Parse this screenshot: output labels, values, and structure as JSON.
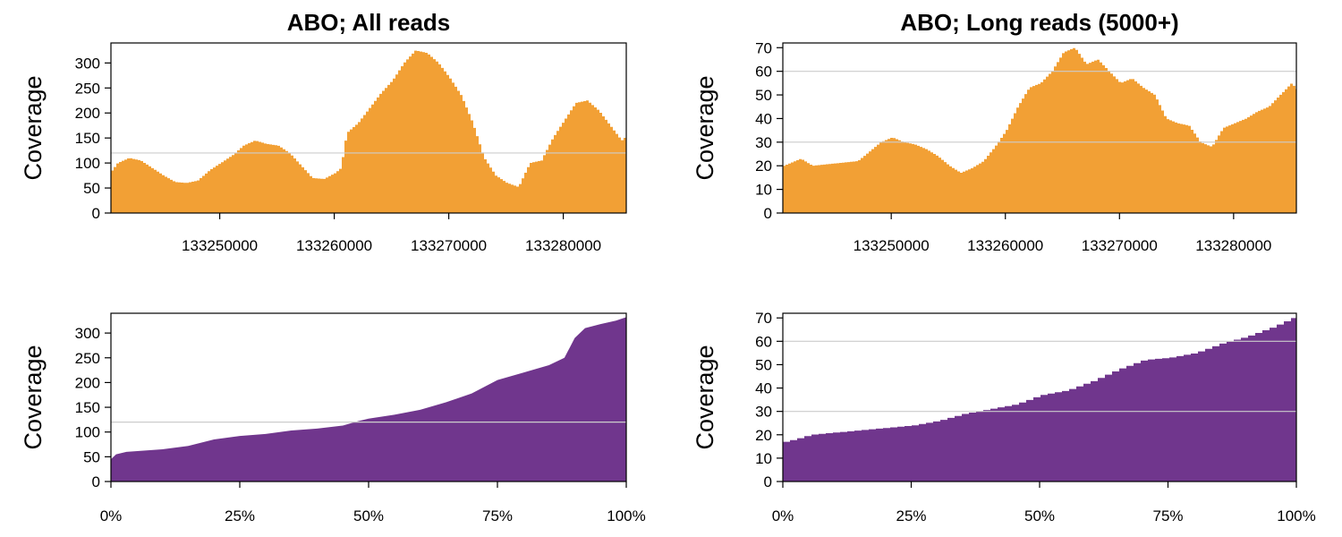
{
  "colors": {
    "coverage_fill": "#F2A035",
    "sorted_fill": "#70368D",
    "reference_line": "#CCCCCC"
  },
  "chart_data": [
    {
      "type": "area",
      "title": "ABO; All reads",
      "ylabel": "Coverage",
      "xlim": [
        133240500,
        133285500
      ],
      "ylim": [
        0,
        340
      ],
      "xticks": [
        133250000,
        133260000,
        133270000,
        133280000
      ],
      "xtick_labels": [
        "133250000",
        "133260000",
        "133270000",
        "133280000"
      ],
      "yticks": [
        0,
        50,
        100,
        150,
        200,
        250,
        300
      ],
      "reference_lines": [
        120
      ],
      "series": [
        {
          "x": [
            133240500,
            133241000,
            133242000,
            133243000,
            133244000,
            133245000,
            133246000,
            133247000,
            133248000,
            133249000,
            133250000,
            133251000,
            133252000,
            133253000,
            133254000,
            133255000,
            133256000,
            133257000,
            133258000,
            133259000,
            133260000,
            133260500,
            133261000,
            133262000,
            133263000,
            133264000,
            133265000,
            133266000,
            133267000,
            133268000,
            133269000,
            133270000,
            133271000,
            133272000,
            133273000,
            133274000,
            133275000,
            133276000,
            133277000,
            133278000,
            133279000,
            133280000,
            133281000,
            133282000,
            133283000,
            133284000,
            133285000,
            133285500
          ],
          "y": [
            85,
            100,
            110,
            105,
            90,
            75,
            62,
            60,
            65,
            85,
            100,
            115,
            135,
            145,
            138,
            135,
            120,
            95,
            70,
            68,
            80,
            90,
            160,
            180,
            210,
            240,
            265,
            300,
            325,
            320,
            300,
            270,
            235,
            180,
            110,
            75,
            60,
            52,
            100,
            105,
            150,
            185,
            220,
            225,
            205,
            175,
            145,
            155
          ]
        }
      ]
    },
    {
      "type": "area",
      "title": "ABO; Long reads (5000+)",
      "ylabel": "Coverage",
      "xlim": [
        133240500,
        133285500
      ],
      "ylim": [
        0,
        72
      ],
      "xticks": [
        133250000,
        133260000,
        133270000,
        133280000
      ],
      "xtick_labels": [
        "133250000",
        "133260000",
        "133270000",
        "133280000"
      ],
      "yticks": [
        0,
        10,
        20,
        30,
        40,
        50,
        60,
        70
      ],
      "reference_lines": [
        30,
        60
      ],
      "series": [
        {
          "x": [
            133240500,
            133242000,
            133243000,
            133245000,
            133247000,
            133248000,
            133249000,
            133250000,
            133251000,
            133252000,
            133253000,
            133254000,
            133255000,
            133256000,
            133257000,
            133258000,
            133259000,
            133260000,
            133261000,
            133262000,
            133263000,
            133264000,
            133265000,
            133266000,
            133267000,
            133268000,
            133269000,
            133270000,
            133271000,
            133272000,
            133273000,
            133274000,
            133275000,
            133276000,
            133277000,
            133278000,
            133279000,
            133280000,
            133281000,
            133282000,
            133283000,
            133284000,
            133285000,
            133285500
          ],
          "y": [
            20,
            23,
            20,
            21,
            22,
            26,
            30,
            32,
            30,
            29,
            27,
            24,
            20,
            17,
            19,
            22,
            28,
            35,
            45,
            53,
            55,
            60,
            68,
            70,
            63,
            65,
            60,
            55,
            57,
            53,
            50,
            40,
            38,
            37,
            30,
            28,
            36,
            38,
            40,
            43,
            45,
            50,
            55,
            52
          ]
        }
      ]
    },
    {
      "type": "area",
      "ylabel": "Coverage",
      "xlim": [
        0,
        100
      ],
      "ylim": [
        0,
        340
      ],
      "xticks": [
        0,
        25,
        50,
        75,
        100
      ],
      "xtick_labels": [
        "0%",
        "25%",
        "50%",
        "75%",
        "100%"
      ],
      "yticks": [
        0,
        50,
        100,
        150,
        200,
        250,
        300
      ],
      "reference_lines": [
        120
      ],
      "series": [
        {
          "x": [
            0,
            1,
            3,
            10,
            15,
            20,
            25,
            30,
            35,
            40,
            45,
            48,
            50,
            55,
            60,
            65,
            70,
            75,
            80,
            85,
            88,
            89,
            90,
            91,
            92,
            95,
            98,
            100
          ],
          "y": [
            45,
            55,
            60,
            65,
            72,
            85,
            92,
            96,
            103,
            107,
            113,
            122,
            127,
            135,
            145,
            160,
            178,
            205,
            220,
            235,
            250,
            270,
            290,
            300,
            310,
            318,
            325,
            332
          ]
        }
      ]
    },
    {
      "type": "area",
      "ylabel": "Coverage",
      "xlim": [
        0,
        100
      ],
      "ylim": [
        0,
        72
      ],
      "xticks": [
        0,
        25,
        50,
        75,
        100
      ],
      "xtick_labels": [
        "0%",
        "25%",
        "50%",
        "75%",
        "100%"
      ],
      "yticks": [
        0,
        10,
        20,
        30,
        40,
        50,
        60,
        70
      ],
      "reference_lines": [
        30,
        60
      ],
      "series": [
        {
          "x": [
            0,
            2,
            5,
            10,
            15,
            20,
            25,
            30,
            35,
            40,
            45,
            50,
            55,
            60,
            65,
            70,
            75,
            80,
            85,
            90,
            95,
            100
          ],
          "y": [
            17,
            18,
            20,
            21,
            22,
            23,
            24,
            26,
            29,
            31,
            33,
            37,
            39,
            43,
            48,
            52,
            53,
            55,
            59,
            62,
            66,
            71
          ]
        }
      ]
    }
  ]
}
